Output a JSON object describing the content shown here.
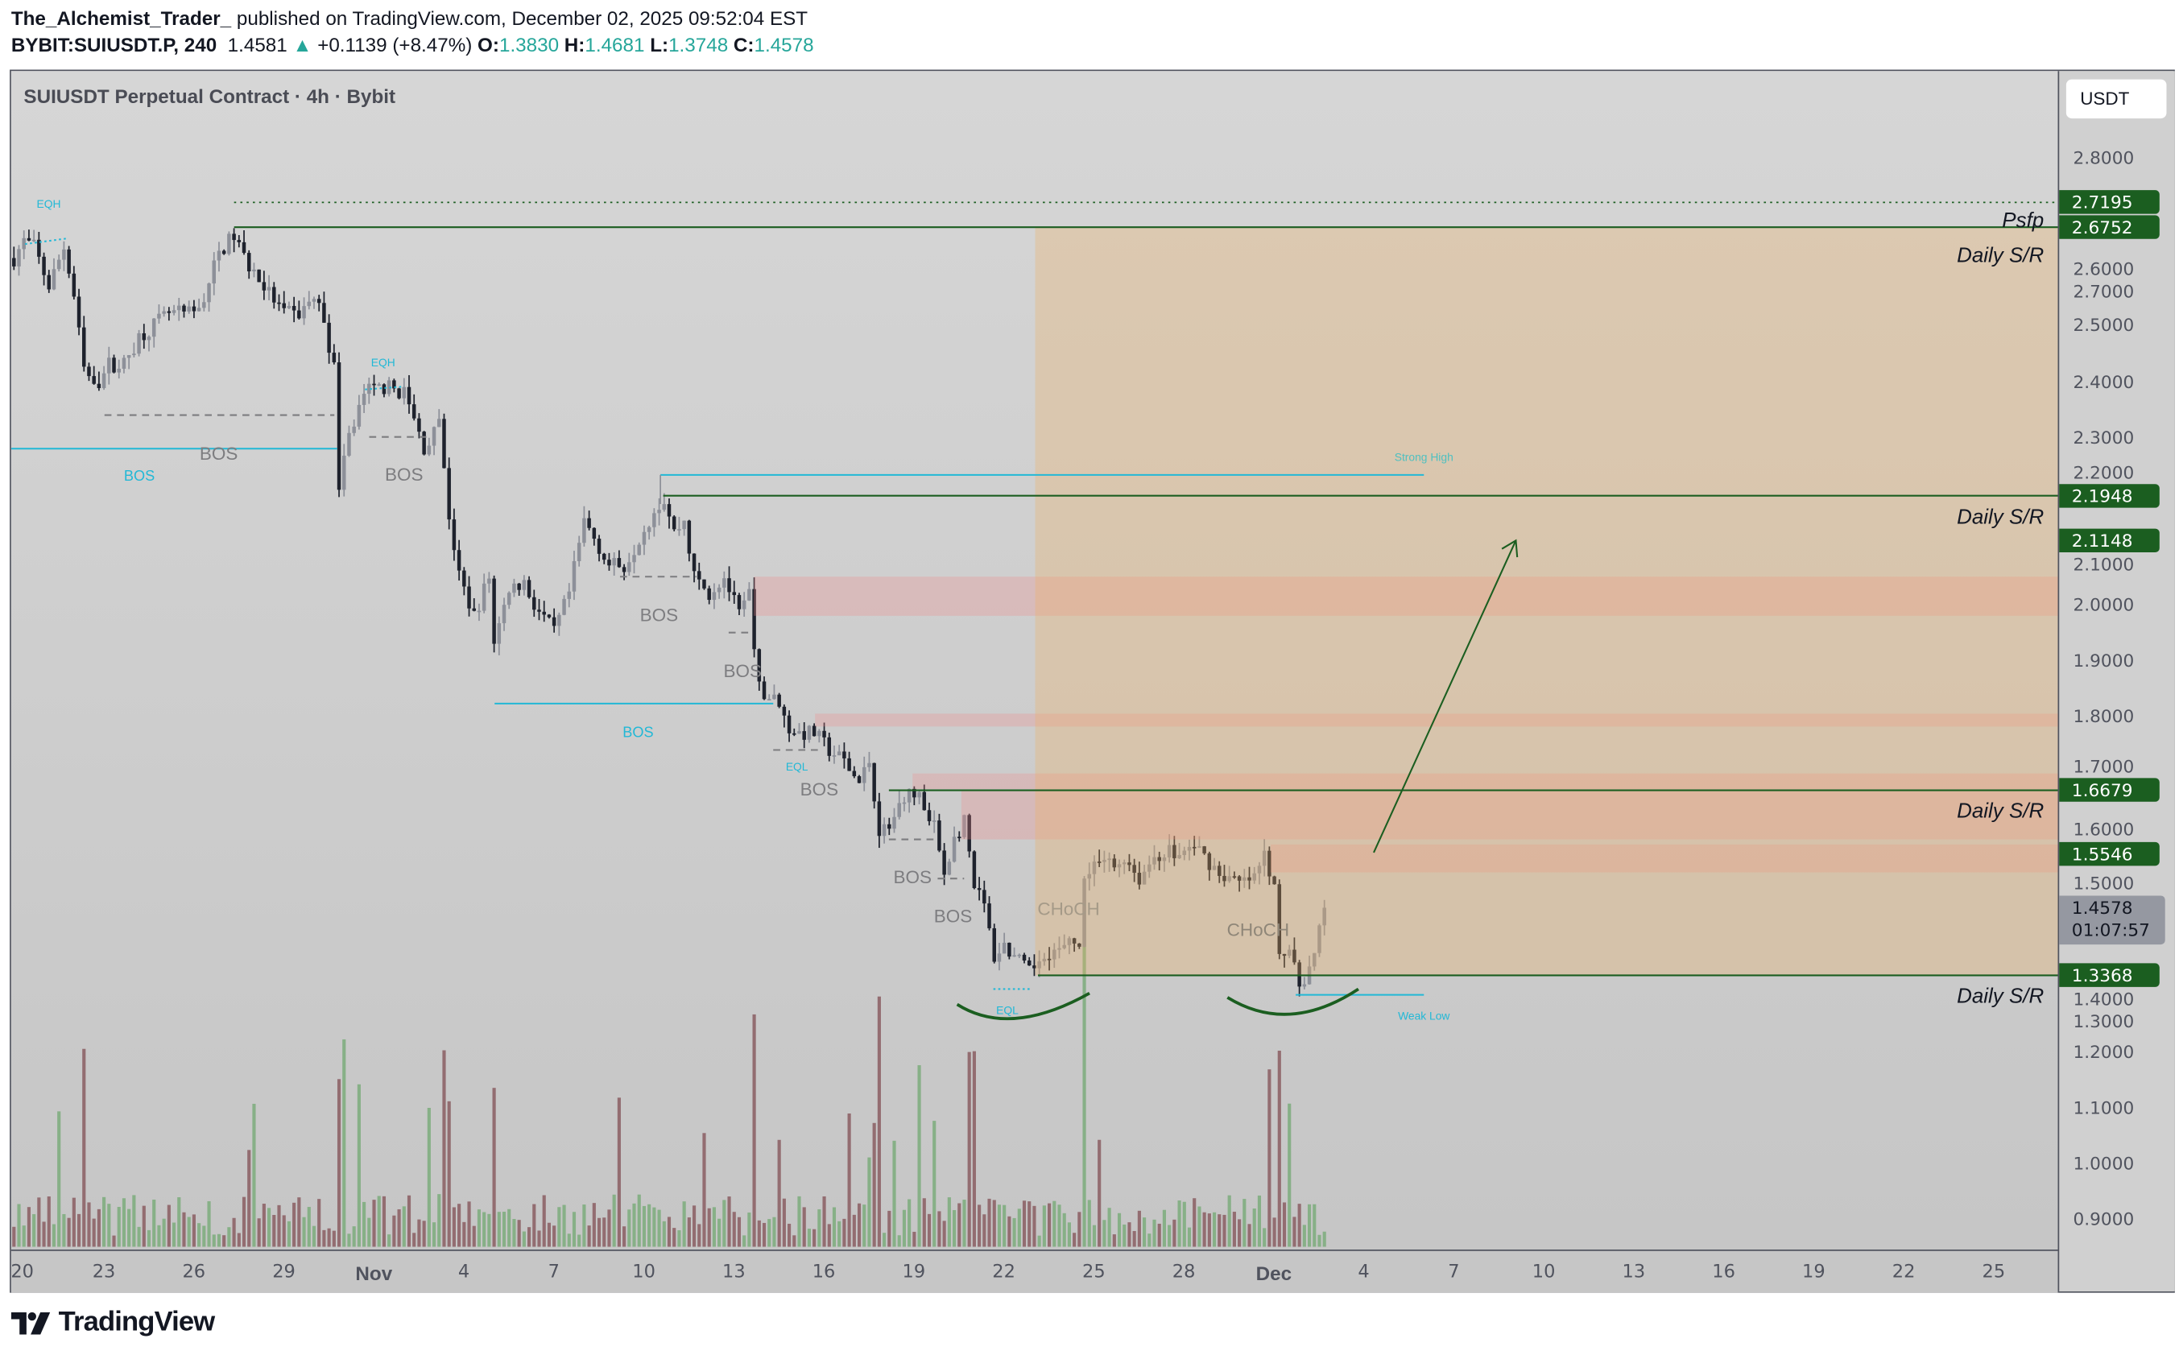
{
  "header": {
    "author": "The_Alchemist_Trader_",
    "published": "published on TradingView.com, December 02, 2025 09:52:04 EST",
    "symbol": "BYBIT:SUIUSDT.P, 240",
    "last": "1.4581",
    "change": "+0.1139 (+8.47%)",
    "o_label": "O:",
    "o": "1.3830",
    "h_label": "H:",
    "h": "1.4681",
    "l_label": "L:",
    "l": "1.3748",
    "c_label": "C:",
    "c": "1.4578"
  },
  "chart_title": "SUIUSDT Perpetual Contract · 4h · Bybit",
  "currency_button": "USDT",
  "logo_text": "TradingView",
  "colors": {
    "up": "#8d9099",
    "down": "#1e222d",
    "vol_up": "#7bab7b",
    "vol_down": "#8a5d62",
    "sr_green": "#1b5e20",
    "cyan": "#22b8d6",
    "zone": "#f0b060",
    "ob": "#f08a8a"
  },
  "price_axis": {
    "labels": [
      "2.8000",
      "2.7000",
      "2.6000",
      "2.5000",
      "2.4000",
      "2.3000",
      "2.2000",
      "2.1000",
      "2.0000",
      "1.9000",
      "1.8000",
      "1.7000",
      "1.6000",
      "1.5000",
      "1.4000",
      "1.3000",
      "1.2000",
      "1.1000",
      "1.0000",
      "0.9000"
    ],
    "tags": [
      {
        "price": 2.7195,
        "text": "2.7195"
      },
      {
        "price": 2.6752,
        "text": "2.6752"
      },
      {
        "price": 2.1948,
        "text": "2.1948"
      },
      {
        "price": 2.1148,
        "text": "2.1148"
      },
      {
        "price": 1.6679,
        "text": "1.6679"
      },
      {
        "price": 1.5546,
        "text": "1.5546"
      },
      {
        "price": 1.3368,
        "text": "1.3368"
      }
    ],
    "current": {
      "price": 1.4578,
      "text": "1.4578",
      "countdown": "01:07:57"
    }
  },
  "time_axis": [
    {
      "day": 0,
      "text": "20"
    },
    {
      "day": 3,
      "text": "23"
    },
    {
      "day": 6,
      "text": "26"
    },
    {
      "day": 9,
      "text": "29"
    },
    {
      "day": 12,
      "text": "Nov",
      "bold": true
    },
    {
      "day": 15,
      "text": "4"
    },
    {
      "day": 18,
      "text": "7"
    },
    {
      "day": 21,
      "text": "10"
    },
    {
      "day": 24,
      "text": "13"
    },
    {
      "day": 27,
      "text": "16"
    },
    {
      "day": 30,
      "text": "19"
    },
    {
      "day": 33,
      "text": "22"
    },
    {
      "day": 36,
      "text": "25"
    },
    {
      "day": 39,
      "text": "28"
    },
    {
      "day": 42,
      "text": "Dec",
      "bold": true
    },
    {
      "day": 45,
      "text": "4"
    },
    {
      "day": 48,
      "text": "7"
    },
    {
      "day": 51,
      "text": "10"
    },
    {
      "day": 54,
      "text": "13"
    },
    {
      "day": 57,
      "text": "16"
    },
    {
      "day": 60,
      "text": "19"
    },
    {
      "day": 63,
      "text": "22"
    },
    {
      "day": 66,
      "text": "25"
    }
  ],
  "chart_data": {
    "type": "candlestick",
    "interval": "4h",
    "keypoints_bar_price": [
      [
        0,
        2.62
      ],
      [
        2,
        2.65
      ],
      [
        4,
        2.64
      ],
      [
        7,
        2.57
      ],
      [
        10,
        2.64
      ],
      [
        12,
        2.55
      ],
      [
        14,
        2.42
      ],
      [
        17,
        2.4
      ],
      [
        19,
        2.43
      ],
      [
        22,
        2.43
      ],
      [
        25,
        2.48
      ],
      [
        31,
        2.52
      ],
      [
        36,
        2.52
      ],
      [
        38,
        2.55
      ],
      [
        41,
        2.63
      ],
      [
        44,
        2.66
      ],
      [
        46,
        2.62
      ],
      [
        50,
        2.57
      ],
      [
        54,
        2.52
      ],
      [
        57,
        2.52
      ],
      [
        60,
        2.55
      ],
      [
        62,
        2.51
      ],
      [
        64,
        2.42
      ],
      [
        65,
        2.22
      ],
      [
        67,
        2.3
      ],
      [
        70,
        2.38
      ],
      [
        74,
        2.39
      ],
      [
        78,
        2.38
      ],
      [
        82,
        2.28
      ],
      [
        85,
        2.32
      ],
      [
        87,
        2.16
      ],
      [
        89,
        2.05
      ],
      [
        92,
        1.98
      ],
      [
        95,
        2.05
      ],
      [
        96,
        1.93
      ],
      [
        99,
        2.03
      ],
      [
        102,
        2.04
      ],
      [
        104,
        2.0
      ],
      [
        108,
        1.95
      ],
      [
        111,
        2.02
      ],
      [
        114,
        2.15
      ],
      [
        116,
        2.12
      ],
      [
        119,
        2.07
      ],
      [
        122,
        2.07
      ],
      [
        125,
        2.12
      ],
      [
        128,
        2.17
      ],
      [
        130,
        2.19
      ],
      [
        132,
        2.13
      ],
      [
        134,
        2.15
      ],
      [
        136,
        2.05
      ],
      [
        139,
        2.02
      ],
      [
        142,
        2.05
      ],
      [
        145,
        1.98
      ],
      [
        147,
        2.02
      ],
      [
        149,
        1.85
      ],
      [
        152,
        1.83
      ],
      [
        155,
        1.78
      ],
      [
        157,
        1.77
      ],
      [
        160,
        1.77
      ],
      [
        163,
        1.74
      ],
      [
        166,
        1.72
      ],
      [
        169,
        1.68
      ],
      [
        171,
        1.72
      ],
      [
        173,
        1.6
      ],
      [
        175,
        1.6
      ],
      [
        178,
        1.66
      ],
      [
        181,
        1.66
      ],
      [
        184,
        1.6
      ],
      [
        186,
        1.52
      ],
      [
        188,
        1.58
      ],
      [
        190,
        1.61
      ],
      [
        192,
        1.5
      ],
      [
        194,
        1.46
      ],
      [
        196,
        1.37
      ],
      [
        198,
        1.39
      ],
      [
        201,
        1.36
      ],
      [
        203,
        1.34
      ],
      [
        206,
        1.38
      ],
      [
        209,
        1.38
      ],
      [
        213,
        1.4
      ],
      [
        214,
        1.5
      ],
      [
        217,
        1.55
      ],
      [
        220,
        1.53
      ],
      [
        222,
        1.55
      ],
      [
        225,
        1.51
      ],
      [
        228,
        1.55
      ],
      [
        231,
        1.56
      ],
      [
        233,
        1.55
      ],
      [
        236,
        1.57
      ],
      [
        238,
        1.55
      ],
      [
        241,
        1.52
      ],
      [
        245,
        1.5
      ],
      [
        248,
        1.51
      ],
      [
        250,
        1.55
      ],
      [
        252,
        1.5
      ],
      [
        253,
        1.39
      ],
      [
        255,
        1.37
      ],
      [
        257,
        1.32
      ],
      [
        259,
        1.35
      ],
      [
        260,
        1.37
      ],
      [
        262,
        1.4578
      ]
    ],
    "ylim": [
      0.85,
      2.87
    ],
    "levels": {
      "psfp": 2.7195,
      "daily_sr": [
        2.6752,
        2.1948,
        1.6679,
        1.3368
      ],
      "strong_high": 2.232,
      "weak_low": 1.302
    }
  },
  "annotations": {
    "bos": "BOS",
    "eqh": "EQH",
    "eql": "EQL",
    "choch": "CHoCH",
    "strong_high": "Strong High",
    "weak_low": "Weak Low",
    "psfp": "Psfp",
    "daily_sr": "Daily S/R"
  }
}
